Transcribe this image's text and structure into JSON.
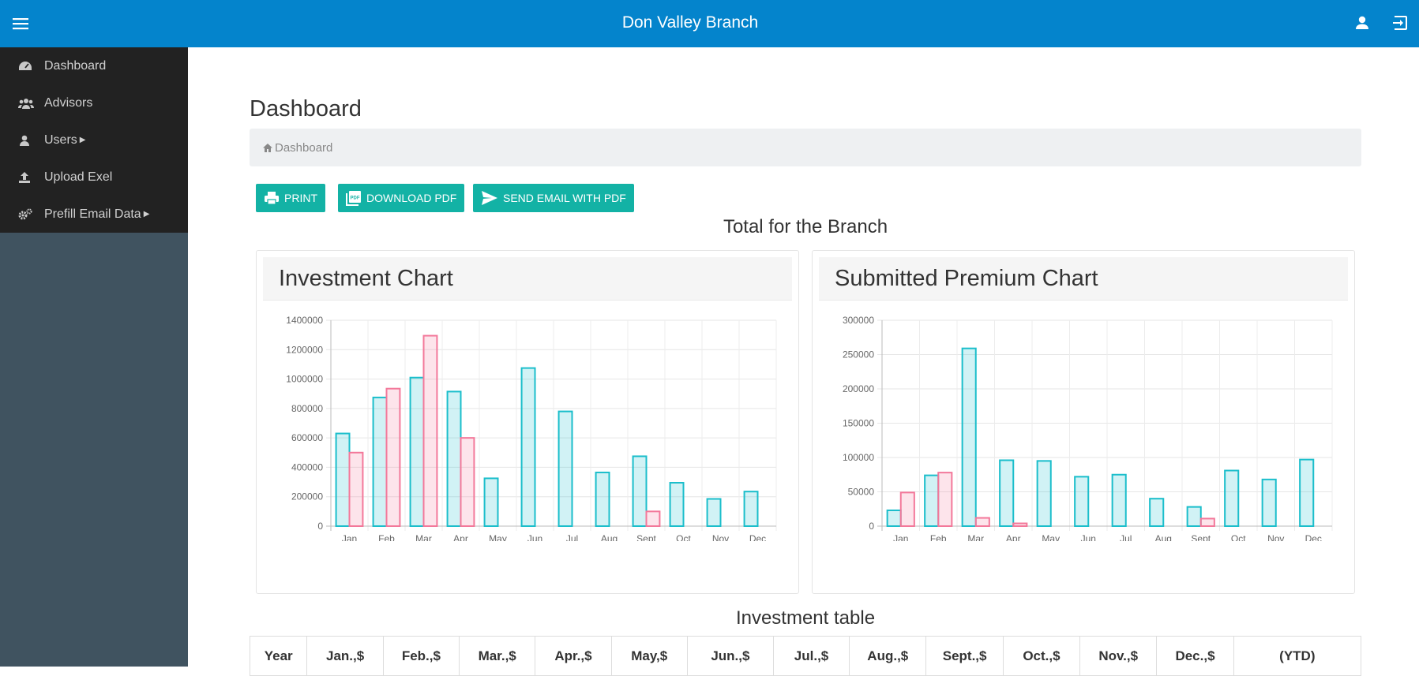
{
  "header": {
    "title": "Don Valley Branch",
    "menu_icon": "hamburger-icon",
    "user_icon": "user-icon",
    "logout_icon": "logout-icon"
  },
  "sidebar": {
    "items": [
      {
        "label": "Dashboard",
        "icon": "dashboard-icon",
        "has_caret": false
      },
      {
        "label": "Advisors",
        "icon": "users-group-icon",
        "has_caret": false
      },
      {
        "label": "Users",
        "icon": "user-icon",
        "has_caret": true
      },
      {
        "label": "Upload Exel",
        "icon": "upload-icon",
        "has_caret": false
      },
      {
        "label": "Prefill Email Data",
        "icon": "gears-icon",
        "has_caret": true
      }
    ]
  },
  "page": {
    "title": "Dashboard",
    "breadcrumb": "Dashboard"
  },
  "toolbar": {
    "print_label": "PRINT",
    "download_label": "DOWNLOAD PDF",
    "email_label": "SEND EMAIL WITH PDF"
  },
  "section_title": "Total for the Branch",
  "colors": {
    "accent": "#0484cc",
    "button": "#13b2a5",
    "series1": "#1bbecb",
    "series2": "#f3789a"
  },
  "chart_data": [
    {
      "type": "bar",
      "title": "Investment Chart",
      "categories": [
        "Jan",
        "Feb",
        "Mar",
        "Apr",
        "May",
        "Jun",
        "Jul",
        "Aug",
        "Sept",
        "Oct",
        "Nov",
        "Dec"
      ],
      "series": [
        {
          "values": [
            630000,
            875000,
            1010000,
            915000,
            325000,
            1075000,
            780000,
            365000,
            475000,
            295000,
            185000,
            235000
          ]
        },
        {
          "values": [
            500000,
            935000,
            1295000,
            600000,
            0,
            0,
            0,
            0,
            100000,
            0,
            0,
            0
          ]
        }
      ],
      "ylim": [
        0,
        1400000
      ],
      "yticks": [
        "0",
        "200000",
        "400000",
        "600000",
        "800000",
        "1000000",
        "1200000",
        "1400000"
      ],
      "grid": true
    },
    {
      "type": "bar",
      "title": "Submitted Premium Chart",
      "categories": [
        "Jan",
        "Feb",
        "Mar",
        "Apr",
        "May",
        "Jun",
        "Jul",
        "Aug",
        "Sept",
        "Oct",
        "Nov",
        "Dec"
      ],
      "series": [
        {
          "values": [
            23000,
            74000,
            259000,
            96000,
            95000,
            72000,
            75000,
            40000,
            28000,
            81000,
            68000,
            97000
          ]
        },
        {
          "values": [
            49000,
            78000,
            12000,
            4000,
            0,
            0,
            0,
            0,
            11000,
            0,
            0,
            0
          ]
        }
      ],
      "ylim": [
        0,
        300000
      ],
      "yticks": [
        "0",
        "50000",
        "100000",
        "150000",
        "200000",
        "250000",
        "300000"
      ],
      "grid": true
    }
  ],
  "table": {
    "title": "Investment table",
    "headers": [
      "Year",
      "Jan.,$",
      "Feb.,$",
      "Mar.,$",
      "Apr.,$",
      "May,$",
      "Jun.,$",
      "Jul.,$",
      "Aug.,$",
      "Sept.,$",
      "Oct.,$",
      "Nov.,$",
      "Dec.,$",
      "(YTD)"
    ]
  }
}
